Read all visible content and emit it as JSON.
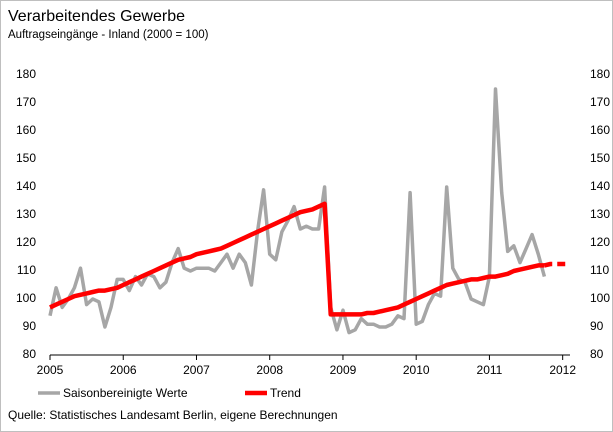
{
  "chart_data": {
    "type": "line",
    "title": "Verarbeitendes Gewerbe",
    "subtitle": "Auftragseingänge - Inland (2000 = 100)",
    "source": "Quelle: Statistisches Landesamt Berlin, eigene Berechnungen",
    "xlim": [
      2005,
      2012.1
    ],
    "xticks": [
      2005,
      2006,
      2007,
      2008,
      2009,
      2010,
      2011,
      2012
    ],
    "ylim": [
      80,
      180
    ],
    "yticks": [
      80,
      90,
      100,
      110,
      120,
      130,
      140,
      150,
      160,
      170,
      180
    ],
    "grid": false,
    "legend": "bottom",
    "x": [
      2005,
      2005.083,
      2005.167,
      2005.25,
      2005.333,
      2005.417,
      2005.5,
      2005.583,
      2005.667,
      2005.75,
      2005.833,
      2005.917,
      2006,
      2006.083,
      2006.167,
      2006.25,
      2006.333,
      2006.417,
      2006.5,
      2006.583,
      2006.667,
      2006.75,
      2006.833,
      2006.917,
      2007,
      2007.083,
      2007.167,
      2007.25,
      2007.333,
      2007.417,
      2007.5,
      2007.583,
      2007.667,
      2007.75,
      2007.833,
      2007.917,
      2008,
      2008.083,
      2008.167,
      2008.25,
      2008.333,
      2008.417,
      2008.5,
      2008.583,
      2008.667,
      2008.75,
      2008.833,
      2008.917,
      2009,
      2009.083,
      2009.167,
      2009.25,
      2009.333,
      2009.417,
      2009.5,
      2009.583,
      2009.667,
      2009.75,
      2009.833,
      2009.917,
      2010,
      2010.083,
      2010.167,
      2010.25,
      2010.333,
      2010.417,
      2010.5,
      2010.583,
      2010.667,
      2010.75,
      2010.833,
      2010.917,
      2011,
      2011.083,
      2011.167,
      2011.25,
      2011.333,
      2011.417,
      2011.5,
      2011.583,
      2011.667,
      2011.75,
      2011.833,
      2011.917,
      2012,
      2012.083
    ],
    "series": [
      {
        "name": "Saisonbereinigte Werte",
        "color": "#a6a6a6",
        "width": 3.5,
        "values": [
          94,
          104,
          97,
          100,
          104,
          111,
          98,
          100,
          99,
          90,
          97,
          107,
          107,
          103,
          108,
          105,
          109,
          108,
          104,
          106,
          113,
          118,
          111,
          110,
          111,
          111,
          111,
          110,
          113,
          116,
          111,
          116,
          113,
          105,
          124,
          139,
          116,
          114,
          124,
          128,
          133,
          125,
          126,
          125,
          125,
          140,
          97,
          89,
          96,
          88,
          89,
          93,
          91,
          91,
          90,
          90,
          91,
          94,
          93,
          138,
          91,
          92,
          98,
          102,
          101,
          140,
          111,
          107,
          106,
          100,
          99,
          98,
          108,
          175,
          138,
          117,
          119,
          113,
          118,
          123,
          116,
          108,
          null,
          null,
          null,
          null
        ]
      },
      {
        "name": "Trend",
        "color": "#ff0000",
        "width": 4.5,
        "values": [
          97,
          98,
          99,
          100,
          101,
          101.5,
          102,
          102.5,
          103,
          103,
          103.5,
          104,
          105,
          106,
          107,
          108,
          109,
          110,
          111,
          112,
          113,
          114,
          114.5,
          115,
          116,
          116.5,
          117,
          117.5,
          118,
          119,
          120,
          121,
          122,
          123,
          124,
          125,
          126,
          127,
          128,
          129,
          130,
          131,
          131.5,
          132,
          133,
          134,
          94.5,
          94.5,
          94.5,
          94.5,
          94.5,
          94.5,
          95,
          95,
          95.5,
          96,
          96.5,
          97,
          98,
          99,
          100,
          101,
          102,
          103,
          104,
          105,
          105.5,
          106,
          106.5,
          107,
          107,
          107.5,
          108,
          108,
          108.5,
          109,
          110,
          110.5,
          111,
          111.5,
          112,
          112,
          112.5,
          112.5,
          112.5,
          112.5
        ]
      }
    ]
  }
}
